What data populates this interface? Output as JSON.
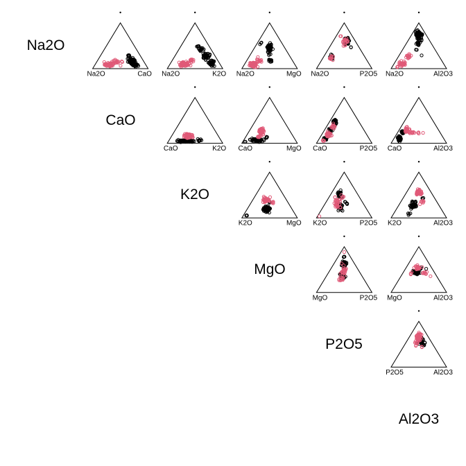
{
  "chart_data": {
    "type": "scatter",
    "subtype": "ternary-scatter-plot-matrix",
    "title": "",
    "variables": [
      "Na2O",
      "CaO",
      "K2O",
      "MgO",
      "P2O5",
      "Al2O3"
    ],
    "series": [
      {
        "name": "group-black",
        "color": "#000000"
      },
      {
        "name": "group-pink",
        "color": "#E05A78"
      }
    ],
    "marker": {
      "shape": "open-circle",
      "radius": 2.1,
      "stroke_width": 1
    },
    "apex_marker": {
      "shape": "dot",
      "radius": 1.2,
      "color": "#000000"
    },
    "grid": false,
    "legend": "none",
    "cluster_format": [
      "u_across_base_0to1",
      "v_height_0to1",
      "sd_u",
      "sd_v",
      "n_points"
    ],
    "panels": [
      {
        "row": 0,
        "col": 1,
        "left": "Na2O",
        "right": "CaO",
        "black": [
          [
            0.7,
            0.17,
            0.055,
            0.06,
            60
          ],
          [
            0.76,
            0.08,
            0.045,
            0.035,
            30
          ],
          [
            0.66,
            0.28,
            0.02,
            0.03,
            6
          ]
        ],
        "pink": [
          [
            0.3,
            0.09,
            0.09,
            0.035,
            55
          ],
          [
            0.42,
            0.15,
            0.05,
            0.03,
            15
          ],
          [
            0.53,
            0.15,
            0.015,
            0.015,
            2
          ],
          [
            0.5,
            0.07,
            0.01,
            0.01,
            1
          ]
        ]
      },
      {
        "row": 0,
        "col": 2,
        "left": "Na2O",
        "right": "K2O",
        "black": [
          [
            0.62,
            0.42,
            0.035,
            0.045,
            15
          ],
          [
            0.7,
            0.28,
            0.05,
            0.06,
            40
          ],
          [
            0.8,
            0.12,
            0.05,
            0.06,
            30
          ],
          [
            0.56,
            0.5,
            0.02,
            0.02,
            4
          ]
        ],
        "pink": [
          [
            0.3,
            0.1,
            0.085,
            0.04,
            55
          ],
          [
            0.44,
            0.18,
            0.04,
            0.035,
            12
          ]
        ]
      },
      {
        "row": 0,
        "col": 3,
        "left": "Na2O",
        "right": "MgO",
        "black": [
          [
            0.5,
            0.45,
            0.04,
            0.11,
            55
          ],
          [
            0.51,
            0.17,
            0.03,
            0.035,
            10
          ],
          [
            0.34,
            0.57,
            0.02,
            0.03,
            3
          ]
        ],
        "pink": [
          [
            0.2,
            0.09,
            0.06,
            0.04,
            50
          ],
          [
            0.31,
            0.2,
            0.035,
            0.05,
            12
          ]
        ]
      },
      {
        "row": 0,
        "col": 4,
        "left": "Na2O",
        "right": "P2O5",
        "black": [
          [
            0.55,
            0.6,
            0.045,
            0.06,
            45
          ],
          [
            0.27,
            0.26,
            0.025,
            0.045,
            14
          ],
          [
            0.62,
            0.46,
            0.01,
            0.01,
            2
          ]
        ],
        "pink": [
          [
            0.51,
            0.59,
            0.055,
            0.07,
            22
          ],
          [
            0.26,
            0.24,
            0.03,
            0.05,
            10
          ],
          [
            0.44,
            0.7,
            0.02,
            0.02,
            2
          ]
        ]
      },
      {
        "row": 0,
        "col": 5,
        "left": "Na2O",
        "right": "Al2O3",
        "black": [
          [
            0.5,
            0.73,
            0.05,
            0.07,
            65
          ],
          [
            0.49,
            0.55,
            0.045,
            0.035,
            12
          ],
          [
            0.55,
            0.29,
            0.008,
            0.008,
            1
          ],
          [
            0.46,
            0.42,
            0.015,
            0.015,
            2
          ]
        ],
        "pink": [
          [
            0.21,
            0.11,
            0.05,
            0.05,
            35
          ],
          [
            0.32,
            0.27,
            0.035,
            0.05,
            14
          ],
          [
            0.12,
            0.04,
            0.02,
            0.015,
            4
          ]
        ]
      },
      {
        "row": 1,
        "col": 2,
        "left": "CaO",
        "right": "K2O",
        "black": [
          [
            0.34,
            0.05,
            0.12,
            0.022,
            65
          ],
          [
            0.58,
            0.06,
            0.03,
            0.02,
            8
          ]
        ],
        "pink": [
          [
            0.38,
            0.16,
            0.07,
            0.04,
            50
          ]
        ]
      },
      {
        "row": 1,
        "col": 3,
        "left": "CaO",
        "right": "MgO",
        "black": [
          [
            0.27,
            0.07,
            0.085,
            0.03,
            55
          ],
          [
            0.06,
            0.035,
            0.012,
            0.012,
            2
          ],
          [
            0.45,
            0.13,
            0.02,
            0.02,
            5
          ]
        ],
        "pink": [
          [
            0.36,
            0.26,
            0.04,
            0.055,
            38
          ],
          [
            0.33,
            0.15,
            0.045,
            0.025,
            10
          ]
        ]
      },
      {
        "row": 1,
        "col": 4,
        "left": "CaO",
        "right": "P2O5",
        "black": [
          [
            0.33,
            0.46,
            0.028,
            0.06,
            28
          ],
          [
            0.25,
            0.28,
            0.035,
            0.05,
            25
          ],
          [
            0.17,
            0.11,
            0.03,
            0.035,
            12
          ]
        ],
        "pink": [
          [
            0.21,
            0.18,
            0.04,
            0.055,
            28
          ],
          [
            0.3,
            0.37,
            0.03,
            0.05,
            12
          ],
          [
            0.13,
            0.06,
            0.018,
            0.015,
            4
          ]
        ]
      },
      {
        "row": 1,
        "col": 5,
        "left": "CaO",
        "right": "Al2O3",
        "black": [
          [
            0.15,
            0.1,
            0.035,
            0.05,
            45
          ],
          [
            0.21,
            0.25,
            0.02,
            0.04,
            12
          ]
        ],
        "pink": [
          [
            0.28,
            0.3,
            0.035,
            0.045,
            22
          ],
          [
            0.36,
            0.23,
            0.055,
            0.02,
            12
          ],
          [
            0.49,
            0.22,
            0.02,
            0.012,
            3
          ],
          [
            0.57,
            0.22,
            0.008,
            0.008,
            1
          ]
        ]
      },
      {
        "row": 2,
        "col": 3,
        "left": "K2O",
        "right": "MgO",
        "black": [
          [
            0.45,
            0.19,
            0.055,
            0.055,
            60
          ],
          [
            0.09,
            0.05,
            0.012,
            0.012,
            3
          ],
          [
            0.5,
            0.34,
            0.02,
            0.02,
            5
          ]
        ],
        "pink": [
          [
            0.44,
            0.39,
            0.06,
            0.05,
            38
          ],
          [
            0.56,
            0.33,
            0.025,
            0.02,
            6
          ]
        ]
      },
      {
        "row": 2,
        "col": 4,
        "left": "K2O",
        "right": "P2O5",
        "black": [
          [
            0.42,
            0.5,
            0.035,
            0.07,
            28
          ],
          [
            0.42,
            0.25,
            0.05,
            0.07,
            30
          ],
          [
            0.53,
            0.33,
            0.02,
            0.025,
            5
          ]
        ],
        "pink": [
          [
            0.38,
            0.32,
            0.045,
            0.09,
            32
          ],
          [
            0.05,
            0.04,
            0.006,
            0.006,
            1
          ],
          [
            0.47,
            0.45,
            0.025,
            0.03,
            6
          ]
        ]
      },
      {
        "row": 2,
        "col": 5,
        "left": "K2O",
        "right": "Al2O3",
        "black": [
          [
            0.4,
            0.29,
            0.05,
            0.06,
            48
          ],
          [
            0.32,
            0.08,
            0.02,
            0.025,
            4
          ],
          [
            0.57,
            0.43,
            0.015,
            0.015,
            3
          ]
        ],
        "pink": [
          [
            0.5,
            0.56,
            0.04,
            0.07,
            34
          ],
          [
            0.56,
            0.36,
            0.03,
            0.03,
            8
          ],
          [
            0.52,
            0.3,
            0.01,
            0.01,
            1
          ]
        ]
      },
      {
        "row": 3,
        "col": 4,
        "left": "MgO",
        "right": "P2O5",
        "black": [
          [
            0.5,
            0.62,
            0.035,
            0.07,
            40
          ],
          [
            0.47,
            0.36,
            0.045,
            0.055,
            28
          ],
          [
            0.5,
            0.78,
            0.015,
            0.015,
            4
          ]
        ],
        "pink": [
          [
            0.48,
            0.5,
            0.045,
            0.09,
            26
          ],
          [
            0.45,
            0.3,
            0.035,
            0.035,
            10
          ],
          [
            0.5,
            0.88,
            0.006,
            0.006,
            1
          ]
        ]
      },
      {
        "row": 3,
        "col": 5,
        "left": "MgO",
        "right": "Al2O3",
        "black": [
          [
            0.45,
            0.45,
            0.055,
            0.04,
            50
          ],
          [
            0.52,
            0.53,
            0.025,
            0.02,
            6
          ],
          [
            0.62,
            0.52,
            0.01,
            0.01,
            1
          ]
        ],
        "pink": [
          [
            0.48,
            0.54,
            0.06,
            0.035,
            22
          ],
          [
            0.61,
            0.42,
            0.045,
            0.03,
            10
          ],
          [
            0.71,
            0.36,
            0.007,
            0.007,
            1
          ],
          [
            0.36,
            0.42,
            0.02,
            0.02,
            4
          ]
        ]
      },
      {
        "row": 4,
        "col": 5,
        "left": "P2O5",
        "right": "Al2O3",
        "black": [
          [
            0.53,
            0.6,
            0.045,
            0.06,
            40
          ],
          [
            0.57,
            0.49,
            0.025,
            0.02,
            6
          ],
          [
            0.6,
            0.54,
            0.012,
            0.01,
            2
          ]
        ],
        "pink": [
          [
            0.49,
            0.66,
            0.045,
            0.07,
            40
          ],
          [
            0.45,
            0.52,
            0.03,
            0.035,
            10
          ],
          [
            0.55,
            0.44,
            0.015,
            0.01,
            2
          ]
        ]
      }
    ]
  }
}
